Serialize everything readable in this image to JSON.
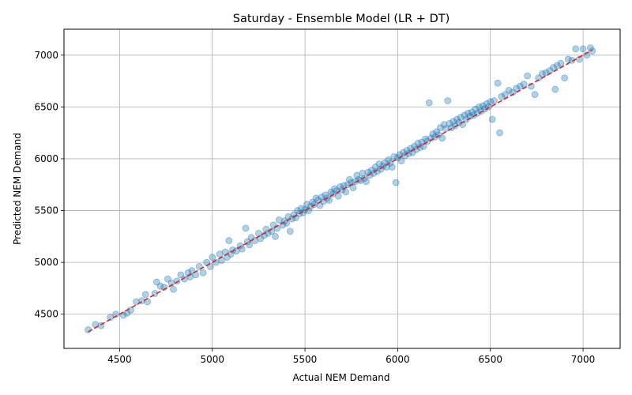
{
  "chart_data": {
    "type": "scatter",
    "title": "Saturday - Ensemble Model (LR + DT)",
    "xlabel": "Actual NEM Demand",
    "ylabel": "Predicted NEM Demand",
    "xlim": [
      4200,
      7200
    ],
    "ylim": [
      4170,
      7250
    ],
    "xticks": [
      4500,
      5000,
      5500,
      6000,
      6500,
      7000
    ],
    "yticks": [
      4500,
      5000,
      5500,
      6000,
      6500,
      7000
    ],
    "grid": true,
    "point_color": "#1f77b4",
    "point_alpha": 0.35,
    "reference_line": {
      "name": "y = x",
      "color": "#d62728",
      "style": "dashed",
      "x": [
        4330,
        7050
      ],
      "y": [
        4330,
        7050
      ]
    },
    "series": [
      {
        "name": "predictions",
        "points": [
          [
            4330,
            4350
          ],
          [
            4370,
            4400
          ],
          [
            4400,
            4390
          ],
          [
            4450,
            4470
          ],
          [
            4480,
            4500
          ],
          [
            4520,
            4490
          ],
          [
            4540,
            4510
          ],
          [
            4560,
            4540
          ],
          [
            4590,
            4620
          ],
          [
            4620,
            4630
          ],
          [
            4640,
            4690
          ],
          [
            4650,
            4620
          ],
          [
            4690,
            4700
          ],
          [
            4700,
            4810
          ],
          [
            4720,
            4770
          ],
          [
            4740,
            4760
          ],
          [
            4760,
            4840
          ],
          [
            4780,
            4800
          ],
          [
            4790,
            4740
          ],
          [
            4810,
            4820
          ],
          [
            4830,
            4880
          ],
          [
            4850,
            4840
          ],
          [
            4870,
            4900
          ],
          [
            4880,
            4860
          ],
          [
            4890,
            4920
          ],
          [
            4910,
            4880
          ],
          [
            4930,
            4960
          ],
          [
            4950,
            4900
          ],
          [
            4970,
            5000
          ],
          [
            4990,
            4960
          ],
          [
            5000,
            5050
          ],
          [
            5020,
            5000
          ],
          [
            5040,
            5080
          ],
          [
            5050,
            5020
          ],
          [
            5070,
            5100
          ],
          [
            5080,
            5050
          ],
          [
            5090,
            5210
          ],
          [
            5100,
            5080
          ],
          [
            5110,
            5120
          ],
          [
            5130,
            5110
          ],
          [
            5150,
            5160
          ],
          [
            5160,
            5130
          ],
          [
            5180,
            5330
          ],
          [
            5190,
            5200
          ],
          [
            5200,
            5170
          ],
          [
            5210,
            5240
          ],
          [
            5230,
            5210
          ],
          [
            5250,
            5280
          ],
          [
            5260,
            5230
          ],
          [
            5280,
            5260
          ],
          [
            5290,
            5320
          ],
          [
            5300,
            5280
          ],
          [
            5320,
            5300
          ],
          [
            5330,
            5360
          ],
          [
            5340,
            5250
          ],
          [
            5350,
            5330
          ],
          [
            5360,
            5410
          ],
          [
            5380,
            5360
          ],
          [
            5390,
            5400
          ],
          [
            5400,
            5380
          ],
          [
            5410,
            5440
          ],
          [
            5420,
            5300
          ],
          [
            5430,
            5420
          ],
          [
            5440,
            5460
          ],
          [
            5450,
            5430
          ],
          [
            5460,
            5500
          ],
          [
            5470,
            5470
          ],
          [
            5480,
            5520
          ],
          [
            5490,
            5480
          ],
          [
            5500,
            5510
          ],
          [
            5510,
            5560
          ],
          [
            5520,
            5500
          ],
          [
            5530,
            5540
          ],
          [
            5540,
            5580
          ],
          [
            5550,
            5560
          ],
          [
            5560,
            5620
          ],
          [
            5570,
            5600
          ],
          [
            5580,
            5550
          ],
          [
            5590,
            5630
          ],
          [
            5600,
            5590
          ],
          [
            5610,
            5650
          ],
          [
            5620,
            5620
          ],
          [
            5630,
            5600
          ],
          [
            5640,
            5680
          ],
          [
            5650,
            5660
          ],
          [
            5660,
            5710
          ],
          [
            5670,
            5690
          ],
          [
            5680,
            5640
          ],
          [
            5690,
            5730
          ],
          [
            5700,
            5700
          ],
          [
            5710,
            5740
          ],
          [
            5720,
            5680
          ],
          [
            5730,
            5750
          ],
          [
            5740,
            5800
          ],
          [
            5750,
            5770
          ],
          [
            5760,
            5720
          ],
          [
            5770,
            5780
          ],
          [
            5780,
            5840
          ],
          [
            5790,
            5800
          ],
          [
            5800,
            5790
          ],
          [
            5810,
            5860
          ],
          [
            5820,
            5810
          ],
          [
            5830,
            5780
          ],
          [
            5840,
            5870
          ],
          [
            5850,
            5840
          ],
          [
            5860,
            5890
          ],
          [
            5870,
            5860
          ],
          [
            5880,
            5920
          ],
          [
            5890,
            5880
          ],
          [
            5900,
            5950
          ],
          [
            5910,
            5900
          ],
          [
            5920,
            5930
          ],
          [
            5930,
            5960
          ],
          [
            5940,
            5920
          ],
          [
            5950,
            5990
          ],
          [
            5960,
            5960
          ],
          [
            5970,
            5920
          ],
          [
            5980,
            6020
          ],
          [
            5990,
            5770
          ],
          [
            6000,
            6010
          ],
          [
            6010,
            6040
          ],
          [
            6020,
            5980
          ],
          [
            6030,
            6060
          ],
          [
            6040,
            6030
          ],
          [
            6050,
            6080
          ],
          [
            6060,
            6050
          ],
          [
            6070,
            6100
          ],
          [
            6080,
            6060
          ],
          [
            6090,
            6120
          ],
          [
            6100,
            6090
          ],
          [
            6110,
            6150
          ],
          [
            6120,
            6110
          ],
          [
            6130,
            6160
          ],
          [
            6140,
            6120
          ],
          [
            6150,
            6190
          ],
          [
            6160,
            6170
          ],
          [
            6170,
            6540
          ],
          [
            6180,
            6200
          ],
          [
            6190,
            6240
          ],
          [
            6200,
            6210
          ],
          [
            6210,
            6260
          ],
          [
            6220,
            6230
          ],
          [
            6230,
            6300
          ],
          [
            6240,
            6200
          ],
          [
            6250,
            6330
          ],
          [
            6260,
            6290
          ],
          [
            6270,
            6560
          ],
          [
            6280,
            6340
          ],
          [
            6290,
            6300
          ],
          [
            6300,
            6360
          ],
          [
            6310,
            6320
          ],
          [
            6320,
            6380
          ],
          [
            6330,
            6350
          ],
          [
            6340,
            6400
          ],
          [
            6350,
            6330
          ],
          [
            6360,
            6420
          ],
          [
            6370,
            6380
          ],
          [
            6380,
            6440
          ],
          [
            6390,
            6410
          ],
          [
            6400,
            6450
          ],
          [
            6410,
            6420
          ],
          [
            6420,
            6480
          ],
          [
            6430,
            6440
          ],
          [
            6440,
            6500
          ],
          [
            6450,
            6460
          ],
          [
            6460,
            6510
          ],
          [
            6470,
            6480
          ],
          [
            6480,
            6530
          ],
          [
            6490,
            6500
          ],
          [
            6500,
            6550
          ],
          [
            6510,
            6380
          ],
          [
            6520,
            6560
          ],
          [
            6540,
            6730
          ],
          [
            6550,
            6250
          ],
          [
            6560,
            6600
          ],
          [
            6580,
            6620
          ],
          [
            6600,
            6660
          ],
          [
            6620,
            6640
          ],
          [
            6640,
            6680
          ],
          [
            6660,
            6700
          ],
          [
            6680,
            6720
          ],
          [
            6700,
            6800
          ],
          [
            6720,
            6700
          ],
          [
            6740,
            6620
          ],
          [
            6760,
            6780
          ],
          [
            6780,
            6820
          ],
          [
            6800,
            6830
          ],
          [
            6820,
            6850
          ],
          [
            6840,
            6880
          ],
          [
            6850,
            6670
          ],
          [
            6860,
            6900
          ],
          [
            6880,
            6920
          ],
          [
            6900,
            6780
          ],
          [
            6920,
            6960
          ],
          [
            6940,
            6950
          ],
          [
            6960,
            7060
          ],
          [
            6980,
            6960
          ],
          [
            7000,
            7060
          ],
          [
            7020,
            7000
          ],
          [
            7040,
            7070
          ],
          [
            7050,
            7040
          ]
        ]
      }
    ]
  }
}
